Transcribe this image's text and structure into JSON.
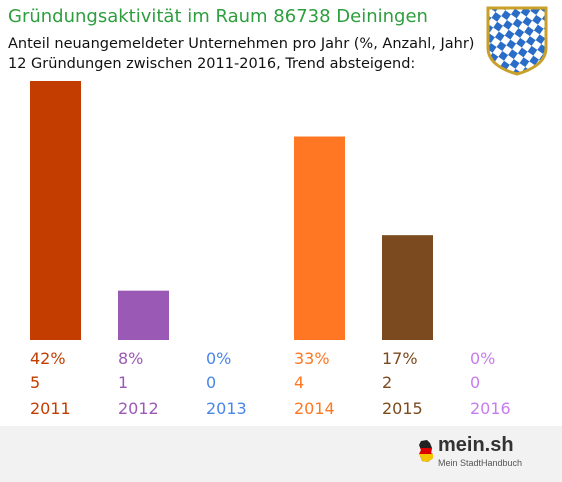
{
  "header": {
    "title": "Gründungsaktivität im Raum 86738 Deiningen",
    "subtitle_line1": "Anteil neuangemeldeter Unternehmen pro Jahr (%, Anzahl, Jahr)",
    "subtitle_line2": "12 Gründungen zwischen 2011-2016, Trend absteigend:"
  },
  "crest": {
    "icon": "bavaria-coat-of-arms-icon",
    "colors": {
      "blue": "#2a6dc8",
      "white": "#ffffff",
      "border": "#c8a02a"
    }
  },
  "chart_data": {
    "type": "bar",
    "categories": [
      "2011",
      "2012",
      "2013",
      "2014",
      "2015",
      "2016"
    ],
    "series": [
      {
        "values": [
          42,
          8,
          0,
          33,
          17,
          0
        ]
      },
      {
        "values": [
          5,
          1,
          0,
          4,
          2,
          0
        ]
      }
    ],
    "percent_labels": [
      "42%",
      "8%",
      "0%",
      "33%",
      "17%",
      "0%"
    ],
    "count_labels": [
      "5",
      "1",
      "0",
      "4",
      "2",
      "0"
    ],
    "colors": [
      "#c43d00",
      "#9b59b6",
      "#4a86e8",
      "#ff7722",
      "#7b4a1e",
      "#c77dee"
    ],
    "ylim": [
      0,
      42
    ],
    "grid": false,
    "legend": "none"
  },
  "footer": {
    "logo_text": "mein.sh",
    "logo_tagline": "Mein StadtHandbuch",
    "logo_icon": "germany-flag-icon"
  }
}
